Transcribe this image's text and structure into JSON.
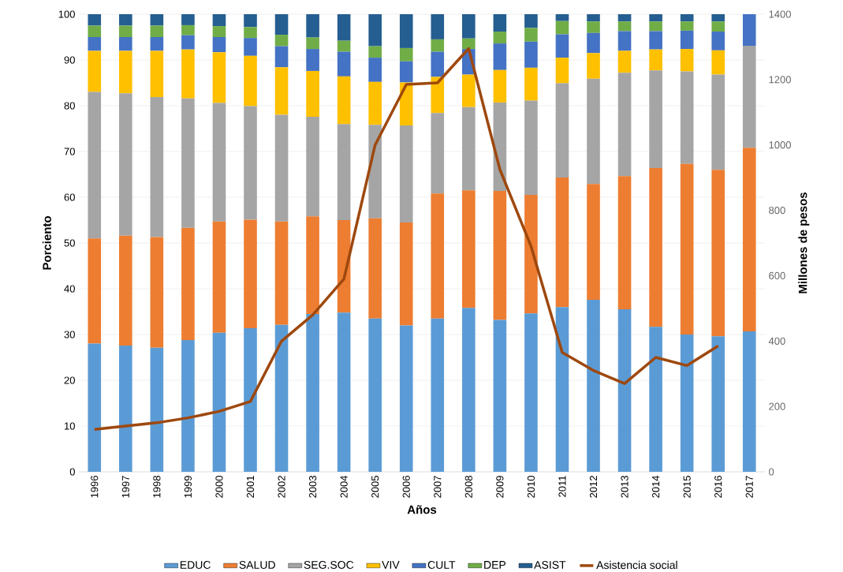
{
  "chart_data": {
    "type": "bar",
    "stacked": true,
    "xlabel": "Años",
    "ylabel": "Porciento",
    "y2label": "Millones de pesos",
    "categories": [
      "1996",
      "1997",
      "1998",
      "1999",
      "2000",
      "2001",
      "2002",
      "2003",
      "2004",
      "2005",
      "2006",
      "2007",
      "2008",
      "2009",
      "2010",
      "2011",
      "2012",
      "2013",
      "2014",
      "2015",
      "2016",
      "2017"
    ],
    "ylim": [
      0,
      100
    ],
    "yticks": [
      0,
      10,
      20,
      30,
      40,
      50,
      60,
      70,
      80,
      90,
      100
    ],
    "y2lim": [
      0,
      1400
    ],
    "y2ticks": [
      0,
      200,
      400,
      600,
      800,
      1000,
      1200,
      1400
    ],
    "grid": "y",
    "legend": "bottom",
    "series": [
      {
        "name": "EDUC",
        "color": "#5b9bd5",
        "values": [
          28,
          27.6,
          27.1,
          28.8,
          30.4,
          31.4,
          32.1,
          34.5,
          34.8,
          33.5,
          32,
          33.5,
          35.8,
          33.2,
          34.6,
          36,
          37.6,
          35.5,
          31.7,
          30,
          29.6,
          30.7
        ]
      },
      {
        "name": "SALUD",
        "color": "#ed7d31",
        "values": [
          23,
          24,
          24.2,
          24.5,
          24.3,
          23.7,
          22.6,
          21.3,
          20.2,
          21.9,
          22.5,
          27.3,
          25.7,
          28.2,
          25.9,
          28.3,
          25.3,
          29.1,
          34.7,
          37.3,
          36.4,
          40.1
        ]
      },
      {
        "name": "SEG.SOC",
        "color": "#a5a5a5",
        "values": [
          32,
          31.1,
          30.6,
          28.3,
          25.9,
          24.8,
          23.3,
          21.8,
          21,
          20.4,
          21.2,
          17.6,
          18.2,
          19.3,
          20.6,
          20.6,
          23,
          22.6,
          21.3,
          20.2,
          20.8,
          22.3
        ]
      },
      {
        "name": "VIV",
        "color": "#ffc000",
        "values": [
          9,
          9.3,
          10.1,
          10.7,
          11.1,
          11,
          10.4,
          10,
          10.4,
          9.4,
          9.4,
          7.9,
          7.1,
          7.1,
          7.2,
          5.6,
          5.6,
          4.8,
          4.6,
          4.9,
          5.3,
          0
        ]
      },
      {
        "name": "CULT",
        "color": "#4472c4",
        "values": [
          3,
          3,
          3,
          3.1,
          3.3,
          3.9,
          4.6,
          4.8,
          5.4,
          5.3,
          4.6,
          5.5,
          5.6,
          5.8,
          5.7,
          5.1,
          4.4,
          4.3,
          4,
          4,
          4.1,
          6.9
        ]
      },
      {
        "name": "DEP",
        "color": "#70ad47",
        "values": [
          2.5,
          2.5,
          2.5,
          2.2,
          2.4,
          2.4,
          2.5,
          2.5,
          2.4,
          2.5,
          2.9,
          2.7,
          2.3,
          2.6,
          3,
          2.9,
          2.5,
          2.1,
          2.1,
          2,
          2.2,
          0
        ]
      },
      {
        "name": "ASIST",
        "color": "#255e91",
        "values": [
          2.5,
          2.5,
          2.5,
          2.4,
          2.6,
          2.8,
          4.5,
          5.1,
          5.8,
          7,
          7.4,
          5.5,
          5.3,
          3.8,
          3,
          1.5,
          1.6,
          1.6,
          1.6,
          1.6,
          1.6,
          0
        ]
      },
      {
        "name": "Asistencia social",
        "type": "line",
        "axis": "y2",
        "color": "#9e480e",
        "values": [
          130,
          140,
          150,
          165,
          185,
          215,
          400,
          480,
          590,
          1000,
          1185,
          1190,
          1295,
          925,
          690,
          365,
          310,
          270,
          350,
          325,
          385,
          null
        ]
      }
    ]
  }
}
